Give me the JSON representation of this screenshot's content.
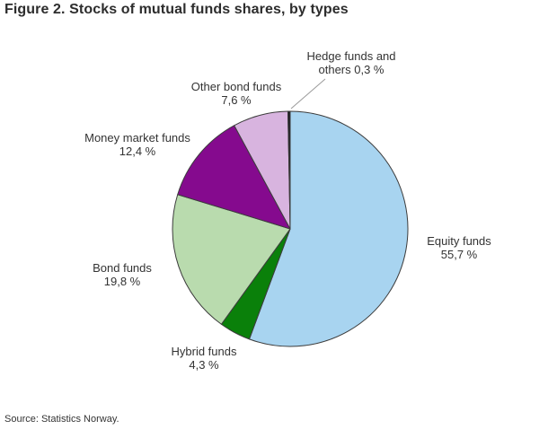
{
  "title": "Figure 2. Stocks of mutual funds shares, by types",
  "source": "Source: Statistics Norway.",
  "chart_data": {
    "type": "pie",
    "title": "Figure 2. Stocks of mutual funds shares, by types",
    "unit": "%",
    "decimal_separator": ",",
    "start_angle_deg": 0,
    "direction": "clockwise",
    "legend_position": "external-labels",
    "outline_color": "#3c3c3c",
    "leader_line_color": "#9a9a9a",
    "slices": [
      {
        "name": "Equity funds",
        "value": 55.7,
        "color": "#a8d4f0",
        "label_lines": [
          "Equity funds",
          "55,7 %"
        ]
      },
      {
        "name": "Hybrid funds",
        "value": 4.3,
        "color": "#0a800a",
        "label_lines": [
          "Hybrid funds",
          "4,3 %"
        ]
      },
      {
        "name": "Bond funds",
        "value": 19.8,
        "color": "#b9dbae",
        "label_lines": [
          "Bond funds",
          "19,8 %"
        ]
      },
      {
        "name": "Money market funds",
        "value": 12.4,
        "color": "#850a8e",
        "label_lines": [
          "Money market funds",
          "12,4 %"
        ]
      },
      {
        "name": "Other bond funds",
        "value": 7.6,
        "color": "#d8b4df",
        "label_lines": [
          "Other bond funds",
          "7,6 %"
        ]
      },
      {
        "name": "Hedge funds and others",
        "value": 0.3,
        "color": "#18181f",
        "label_lines": [
          "Hedge funds and",
          "others 0,3 %"
        ]
      }
    ]
  }
}
